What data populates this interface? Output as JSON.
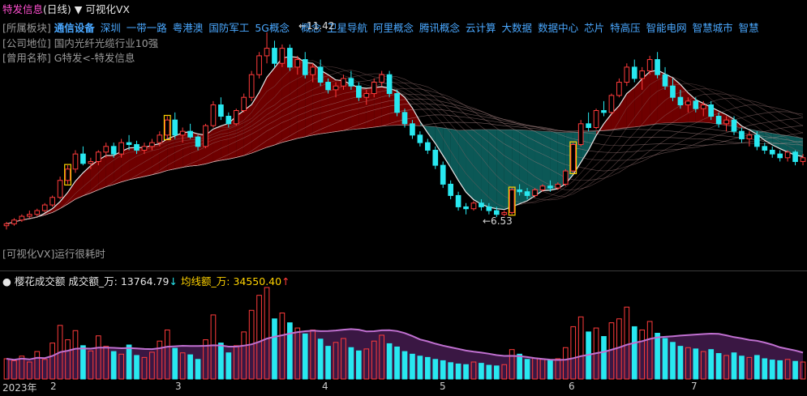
{
  "header": {
    "stock_name": "特发信息",
    "period": "(日线)",
    "indicator_name": "可视化VX",
    "sector_label": "[所属板块]",
    "sectors": [
      "通信设备",
      "深圳",
      "一带一路",
      "粤港澳",
      "国防军工",
      "5G概念",
      "",
      "概念",
      "卫星导航",
      "阿里概念",
      "腾讯概念",
      "云计算",
      "大数据",
      "数据中心",
      "芯片",
      "特高压",
      "智能电网",
      "智慧城市",
      "智慧"
    ],
    "position_label": "[公司地位]",
    "position_text": "国内光纤光缆行业10强",
    "alias_label": "[曾用名称]",
    "alias_text": "G特发<-特发信息",
    "hint_text": "[可视化VX]运行很耗时"
  },
  "annotations": {
    "high_label": "←11.42",
    "low_label": "←6.53"
  },
  "volume_header": {
    "indicator_name": "樱花成交额",
    "amount_label": "成交额_万:",
    "amount_value": "13764.79",
    "amount_arrow": "↓",
    "ma_label": "均线额_万:",
    "ma_value": "34550.40",
    "ma_arrow": "↑"
  },
  "x_axis": {
    "year_label": "2023年",
    "months": [
      "2",
      "3",
      "4",
      "5",
      "6",
      "7"
    ]
  },
  "colors": {
    "up": "#ff3b3b",
    "down": "#28e8f0",
    "highlight_box": "#ffd200",
    "ma_white": "#e8e8e8",
    "fill_red": "#8b0000",
    "fill_teal": "#0e6e6c",
    "volume_ma": "#c070d0"
  },
  "chart_data": {
    "type": "candlestick",
    "price_high_marker": 11.42,
    "price_low_marker": 6.53,
    "candles": [
      [
        6.3,
        6.4,
        6.2,
        6.35
      ],
      [
        6.35,
        6.5,
        6.3,
        6.45
      ],
      [
        6.45,
        6.6,
        6.4,
        6.55
      ],
      [
        6.55,
        6.7,
        6.5,
        6.6
      ],
      [
        6.6,
        6.75,
        6.55,
        6.7
      ],
      [
        6.7,
        6.9,
        6.65,
        6.85
      ],
      [
        6.85,
        7.1,
        6.8,
        7.05
      ],
      [
        7.05,
        7.6,
        7.0,
        7.5
      ],
      [
        7.5,
        7.9,
        7.4,
        7.8
      ],
      [
        7.8,
        8.3,
        7.7,
        8.2
      ],
      [
        8.2,
        8.4,
        7.9,
        7.95
      ],
      [
        7.95,
        8.1,
        7.8,
        8.0
      ],
      [
        8.0,
        8.3,
        7.9,
        8.25
      ],
      [
        8.25,
        8.5,
        8.1,
        8.4
      ],
      [
        8.4,
        8.5,
        8.1,
        8.2
      ],
      [
        8.2,
        8.6,
        8.1,
        8.5
      ],
      [
        8.5,
        8.7,
        8.3,
        8.45
      ],
      [
        8.45,
        8.55,
        8.2,
        8.3
      ],
      [
        8.3,
        8.5,
        8.2,
        8.4
      ],
      [
        8.4,
        8.6,
        8.3,
        8.5
      ],
      [
        8.5,
        8.8,
        8.4,
        8.7
      ],
      [
        8.7,
        9.2,
        8.6,
        9.1
      ],
      [
        9.1,
        9.3,
        8.6,
        8.7
      ],
      [
        8.7,
        8.9,
        8.5,
        8.8
      ],
      [
        8.8,
        9.0,
        8.6,
        8.65
      ],
      [
        8.65,
        8.7,
        8.3,
        8.4
      ],
      [
        8.4,
        9.0,
        8.35,
        8.95
      ],
      [
        8.95,
        9.6,
        8.9,
        9.5
      ],
      [
        9.5,
        9.7,
        9.1,
        9.2
      ],
      [
        9.2,
        9.3,
        8.9,
        9.0
      ],
      [
        9.0,
        9.4,
        8.95,
        9.35
      ],
      [
        9.35,
        9.8,
        9.3,
        9.7
      ],
      [
        9.7,
        10.4,
        9.6,
        10.3
      ],
      [
        10.3,
        10.9,
        10.2,
        10.8
      ],
      [
        10.8,
        11.42,
        10.6,
        11.0
      ],
      [
        11.0,
        11.2,
        10.5,
        10.6
      ],
      [
        10.6,
        11.1,
        10.5,
        11.0
      ],
      [
        11.0,
        11.1,
        10.4,
        10.5
      ],
      [
        10.5,
        10.8,
        10.3,
        10.7
      ],
      [
        10.7,
        10.9,
        10.2,
        10.3
      ],
      [
        10.3,
        10.6,
        10.1,
        10.5
      ],
      [
        10.5,
        10.7,
        10.0,
        10.1
      ],
      [
        10.1,
        10.2,
        9.8,
        9.9
      ],
      [
        9.9,
        10.1,
        9.7,
        10.0
      ],
      [
        10.0,
        10.3,
        9.9,
        10.2
      ],
      [
        10.2,
        10.4,
        9.9,
        10.0
      ],
      [
        10.0,
        10.1,
        9.6,
        9.7
      ],
      [
        9.7,
        9.9,
        9.5,
        9.8
      ],
      [
        9.8,
        10.2,
        9.7,
        10.1
      ],
      [
        10.1,
        10.4,
        10.0,
        10.3
      ],
      [
        10.3,
        10.4,
        9.7,
        9.8
      ],
      [
        9.8,
        9.9,
        9.2,
        9.3
      ],
      [
        9.3,
        9.4,
        8.9,
        9.0
      ],
      [
        9.0,
        9.1,
        8.6,
        8.7
      ],
      [
        8.7,
        8.8,
        8.4,
        8.5
      ],
      [
        8.5,
        8.6,
        8.2,
        8.3
      ],
      [
        8.3,
        8.4,
        7.8,
        7.9
      ],
      [
        7.9,
        8.0,
        7.3,
        7.4
      ],
      [
        7.4,
        7.5,
        7.0,
        7.1
      ],
      [
        7.1,
        7.2,
        6.7,
        6.8
      ],
      [
        6.8,
        6.9,
        6.6,
        6.75
      ],
      [
        6.75,
        6.95,
        6.7,
        6.9
      ],
      [
        6.9,
        7.0,
        6.7,
        6.8
      ],
      [
        6.8,
        6.9,
        6.6,
        6.7
      ],
      [
        6.7,
        6.8,
        6.53,
        6.6
      ],
      [
        6.6,
        6.7,
        6.55,
        6.65
      ],
      [
        6.65,
        7.3,
        6.6,
        7.25
      ],
      [
        7.25,
        7.4,
        7.1,
        7.2
      ],
      [
        7.2,
        7.3,
        7.0,
        7.1
      ],
      [
        7.1,
        7.3,
        7.05,
        7.25
      ],
      [
        7.25,
        7.4,
        7.2,
        7.35
      ],
      [
        7.35,
        7.5,
        7.2,
        7.3
      ],
      [
        7.3,
        7.45,
        7.25,
        7.4
      ],
      [
        7.4,
        7.8,
        7.35,
        7.75
      ],
      [
        7.75,
        8.5,
        7.7,
        8.45
      ],
      [
        8.45,
        9.1,
        8.4,
        9.0
      ],
      [
        9.0,
        9.3,
        8.8,
        8.9
      ],
      [
        8.9,
        9.4,
        8.85,
        9.35
      ],
      [
        9.35,
        9.6,
        9.2,
        9.3
      ],
      [
        9.3,
        9.8,
        9.25,
        9.75
      ],
      [
        9.75,
        10.2,
        9.7,
        10.1
      ],
      [
        10.1,
        10.6,
        10.0,
        10.5
      ],
      [
        10.5,
        10.7,
        10.1,
        10.2
      ],
      [
        10.2,
        10.5,
        9.9,
        10.4
      ],
      [
        10.4,
        10.8,
        10.3,
        10.7
      ],
      [
        10.7,
        10.9,
        10.2,
        10.3
      ],
      [
        10.3,
        10.5,
        9.9,
        10.0
      ],
      [
        10.0,
        10.2,
        9.6,
        9.7
      ],
      [
        9.7,
        9.9,
        9.4,
        9.5
      ],
      [
        9.5,
        9.7,
        9.3,
        9.6
      ],
      [
        9.6,
        9.7,
        9.3,
        9.4
      ],
      [
        9.4,
        9.6,
        9.2,
        9.5
      ],
      [
        9.5,
        9.6,
        9.1,
        9.2
      ],
      [
        9.2,
        9.3,
        8.9,
        9.0
      ],
      [
        9.0,
        9.2,
        8.8,
        9.1
      ],
      [
        9.1,
        9.2,
        8.7,
        8.8
      ],
      [
        8.8,
        8.9,
        8.5,
        8.6
      ],
      [
        8.6,
        8.8,
        8.4,
        8.7
      ],
      [
        8.7,
        8.8,
        8.3,
        8.4
      ],
      [
        8.4,
        8.5,
        8.2,
        8.3
      ],
      [
        8.3,
        8.4,
        8.1,
        8.2
      ],
      [
        8.2,
        8.3,
        8.0,
        8.1
      ],
      [
        8.1,
        8.3,
        8.0,
        8.25
      ],
      [
        8.25,
        8.3,
        7.9,
        8.0
      ],
      [
        8.0,
        8.2,
        7.9,
        8.1
      ]
    ],
    "volume_values": [
      3.1,
      2.8,
      3.5,
      2.6,
      4.2,
      3.0,
      5.5,
      8.2,
      6.0,
      7.4,
      5.1,
      4.3,
      6.6,
      5.0,
      4.2,
      3.8,
      5.2,
      3.6,
      3.3,
      4.1,
      5.8,
      7.5,
      4.7,
      4.0,
      3.7,
      3.0,
      6.0,
      9.8,
      5.5,
      4.0,
      5.1,
      7.2,
      10.5,
      12.8,
      14.0,
      9.2,
      10.1,
      8.6,
      7.8,
      6.9,
      7.5,
      6.1,
      5.0,
      5.6,
      6.2,
      4.8,
      4.3,
      4.6,
      5.8,
      6.7,
      5.4,
      4.9,
      4.2,
      3.8,
      3.5,
      3.3,
      3.0,
      2.8,
      2.5,
      2.3,
      2.2,
      2.6,
      2.4,
      2.1,
      2.0,
      2.2,
      4.5,
      3.8,
      3.0,
      3.2,
      3.0,
      2.9,
      3.1,
      4.8,
      8.0,
      9.5,
      7.2,
      7.8,
      6.5,
      8.6,
      9.2,
      11.0,
      8.0,
      7.5,
      8.8,
      7.0,
      6.2,
      5.6,
      5.0,
      4.8,
      4.6,
      4.2,
      4.5,
      3.9,
      3.6,
      4.0,
      3.5,
      3.3,
      3.6,
      3.1,
      2.9,
      2.8,
      3.0,
      2.7,
      2.6
    ]
  }
}
